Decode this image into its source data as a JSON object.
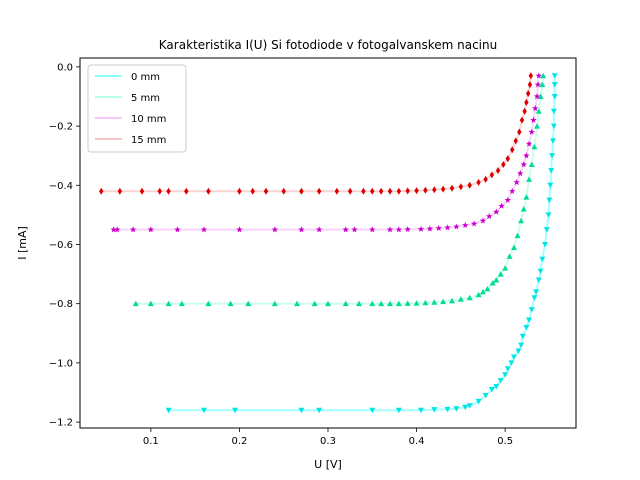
{
  "chart_data": {
    "type": "line",
    "title": "Karakteristika I(U) Si fotodiode v fotogalvanskem nacinu",
    "xlabel": "U [V]",
    "ylabel": "I [mA]",
    "xlim": [
      0.02,
      0.58
    ],
    "ylim": [
      -1.22,
      0.03
    ],
    "xticks": [
      0.1,
      0.2,
      0.3,
      0.4,
      0.5
    ],
    "xtick_labels": [
      "0.1",
      "0.2",
      "0.3",
      "0.4",
      "0.5"
    ],
    "yticks": [
      0.0,
      -0.2,
      -0.4,
      -0.6,
      -0.8,
      -1.0,
      -1.2
    ],
    "ytick_labels": [
      "0.0",
      "−0.2",
      "−0.4",
      "−0.6",
      "−0.8",
      "−1.0",
      "−1.2"
    ],
    "grid": false,
    "legend_position": "top-left",
    "series": [
      {
        "name": "0 mm",
        "line_color": "#00ffff",
        "marker_color": "#00e6e6",
        "marker": "triangle-down",
        "points": [
          [
            0.12,
            -1.16
          ],
          [
            0.16,
            -1.16
          ],
          [
            0.195,
            -1.16
          ],
          [
            0.27,
            -1.16
          ],
          [
            0.29,
            -1.16
          ],
          [
            0.35,
            -1.16
          ],
          [
            0.38,
            -1.16
          ],
          [
            0.405,
            -1.16
          ],
          [
            0.42,
            -1.158
          ],
          [
            0.435,
            -1.157
          ],
          [
            0.445,
            -1.155
          ],
          [
            0.455,
            -1.15
          ],
          [
            0.46,
            -1.145
          ],
          [
            0.47,
            -1.13
          ],
          [
            0.478,
            -1.11
          ],
          [
            0.485,
            -1.09
          ],
          [
            0.49,
            -1.08
          ],
          [
            0.495,
            -1.06
          ],
          [
            0.5,
            -1.04
          ],
          [
            0.503,
            -1.02
          ],
          [
            0.507,
            -1.0
          ],
          [
            0.51,
            -0.98
          ],
          [
            0.515,
            -0.96
          ],
          [
            0.518,
            -0.94
          ],
          [
            0.52,
            -0.91
          ],
          [
            0.524,
            -0.88
          ],
          [
            0.527,
            -0.855
          ],
          [
            0.53,
            -0.82
          ],
          [
            0.533,
            -0.78
          ],
          [
            0.535,
            -0.76
          ],
          [
            0.538,
            -0.72
          ],
          [
            0.54,
            -0.69
          ],
          [
            0.542,
            -0.65
          ],
          [
            0.545,
            -0.6
          ],
          [
            0.547,
            -0.55
          ],
          [
            0.549,
            -0.5
          ],
          [
            0.55,
            -0.45
          ],
          [
            0.551,
            -0.4
          ],
          [
            0.552,
            -0.35
          ],
          [
            0.553,
            -0.3
          ],
          [
            0.554,
            -0.25
          ],
          [
            0.555,
            -0.2
          ],
          [
            0.555,
            -0.15
          ],
          [
            0.556,
            -0.1
          ],
          [
            0.556,
            -0.06
          ],
          [
            0.556,
            -0.03
          ]
        ]
      },
      {
        "name": "5 mm",
        "line_color": "#66ffbf",
        "marker_color": "#00dd99",
        "marker": "triangle-up",
        "points": [
          [
            0.083,
            -0.8
          ],
          [
            0.1,
            -0.8
          ],
          [
            0.12,
            -0.8
          ],
          [
            0.135,
            -0.8
          ],
          [
            0.165,
            -0.8
          ],
          [
            0.19,
            -0.8
          ],
          [
            0.21,
            -0.8
          ],
          [
            0.24,
            -0.8
          ],
          [
            0.265,
            -0.8
          ],
          [
            0.285,
            -0.8
          ],
          [
            0.3,
            -0.8
          ],
          [
            0.32,
            -0.8
          ],
          [
            0.335,
            -0.8
          ],
          [
            0.35,
            -0.8
          ],
          [
            0.36,
            -0.8
          ],
          [
            0.37,
            -0.8
          ],
          [
            0.38,
            -0.8
          ],
          [
            0.39,
            -0.799
          ],
          [
            0.4,
            -0.798
          ],
          [
            0.41,
            -0.797
          ],
          [
            0.42,
            -0.795
          ],
          [
            0.43,
            -0.793
          ],
          [
            0.44,
            -0.79
          ],
          [
            0.45,
            -0.785
          ],
          [
            0.46,
            -0.78
          ],
          [
            0.47,
            -0.77
          ],
          [
            0.475,
            -0.76
          ],
          [
            0.48,
            -0.75
          ],
          [
            0.486,
            -0.73
          ],
          [
            0.49,
            -0.72
          ],
          [
            0.495,
            -0.7
          ],
          [
            0.5,
            -0.68
          ],
          [
            0.505,
            -0.64
          ],
          [
            0.51,
            -0.61
          ],
          [
            0.514,
            -0.57
          ],
          [
            0.518,
            -0.52
          ],
          [
            0.521,
            -0.48
          ],
          [
            0.524,
            -0.44
          ],
          [
            0.527,
            -0.38
          ],
          [
            0.53,
            -0.33
          ],
          [
            0.533,
            -0.27
          ],
          [
            0.536,
            -0.2
          ],
          [
            0.538,
            -0.15
          ],
          [
            0.54,
            -0.1
          ],
          [
            0.542,
            -0.06
          ],
          [
            0.543,
            -0.03
          ]
        ]
      },
      {
        "name": "10 mm",
        "line_color": "#ee82ee",
        "marker_color": "#cc00cc",
        "marker": "star",
        "points": [
          [
            0.058,
            -0.55
          ],
          [
            0.062,
            -0.55
          ],
          [
            0.08,
            -0.55
          ],
          [
            0.1,
            -0.55
          ],
          [
            0.13,
            -0.55
          ],
          [
            0.16,
            -0.55
          ],
          [
            0.2,
            -0.55
          ],
          [
            0.24,
            -0.55
          ],
          [
            0.27,
            -0.55
          ],
          [
            0.29,
            -0.55
          ],
          [
            0.32,
            -0.55
          ],
          [
            0.33,
            -0.55
          ],
          [
            0.35,
            -0.55
          ],
          [
            0.37,
            -0.55
          ],
          [
            0.38,
            -0.55
          ],
          [
            0.39,
            -0.549
          ],
          [
            0.405,
            -0.548
          ],
          [
            0.415,
            -0.547
          ],
          [
            0.425,
            -0.545
          ],
          [
            0.435,
            -0.543
          ],
          [
            0.445,
            -0.54
          ],
          [
            0.455,
            -0.535
          ],
          [
            0.465,
            -0.53
          ],
          [
            0.475,
            -0.52
          ],
          [
            0.482,
            -0.505
          ],
          [
            0.49,
            -0.49
          ],
          [
            0.496,
            -0.47
          ],
          [
            0.503,
            -0.45
          ],
          [
            0.508,
            -0.42
          ],
          [
            0.513,
            -0.39
          ],
          [
            0.517,
            -0.36
          ],
          [
            0.521,
            -0.33
          ],
          [
            0.524,
            -0.3
          ],
          [
            0.527,
            -0.26
          ],
          [
            0.53,
            -0.22
          ],
          [
            0.532,
            -0.18
          ],
          [
            0.534,
            -0.14
          ],
          [
            0.536,
            -0.1
          ],
          [
            0.537,
            -0.06
          ],
          [
            0.538,
            -0.03
          ]
        ]
      },
      {
        "name": "15 mm",
        "line_color": "#f08080",
        "marker_color": "#dd0000",
        "marker": "diamond",
        "points": [
          [
            0.044,
            -0.42
          ],
          [
            0.065,
            -0.42
          ],
          [
            0.09,
            -0.42
          ],
          [
            0.11,
            -0.42
          ],
          [
            0.12,
            -0.42
          ],
          [
            0.14,
            -0.42
          ],
          [
            0.165,
            -0.42
          ],
          [
            0.2,
            -0.42
          ],
          [
            0.215,
            -0.42
          ],
          [
            0.23,
            -0.42
          ],
          [
            0.25,
            -0.42
          ],
          [
            0.27,
            -0.42
          ],
          [
            0.29,
            -0.42
          ],
          [
            0.31,
            -0.42
          ],
          [
            0.325,
            -0.42
          ],
          [
            0.34,
            -0.42
          ],
          [
            0.35,
            -0.42
          ],
          [
            0.36,
            -0.42
          ],
          [
            0.37,
            -0.42
          ],
          [
            0.38,
            -0.42
          ],
          [
            0.39,
            -0.419
          ],
          [
            0.4,
            -0.418
          ],
          [
            0.41,
            -0.417
          ],
          [
            0.42,
            -0.415
          ],
          [
            0.43,
            -0.413
          ],
          [
            0.44,
            -0.41
          ],
          [
            0.45,
            -0.405
          ],
          [
            0.46,
            -0.4
          ],
          [
            0.47,
            -0.39
          ],
          [
            0.478,
            -0.38
          ],
          [
            0.485,
            -0.365
          ],
          [
            0.492,
            -0.35
          ],
          [
            0.498,
            -0.33
          ],
          [
            0.503,
            -0.31
          ],
          [
            0.508,
            -0.28
          ],
          [
            0.512,
            -0.25
          ],
          [
            0.516,
            -0.22
          ],
          [
            0.519,
            -0.18
          ],
          [
            0.522,
            -0.15
          ],
          [
            0.524,
            -0.12
          ],
          [
            0.526,
            -0.09
          ],
          [
            0.528,
            -0.06
          ],
          [
            0.529,
            -0.03
          ]
        ]
      }
    ]
  }
}
